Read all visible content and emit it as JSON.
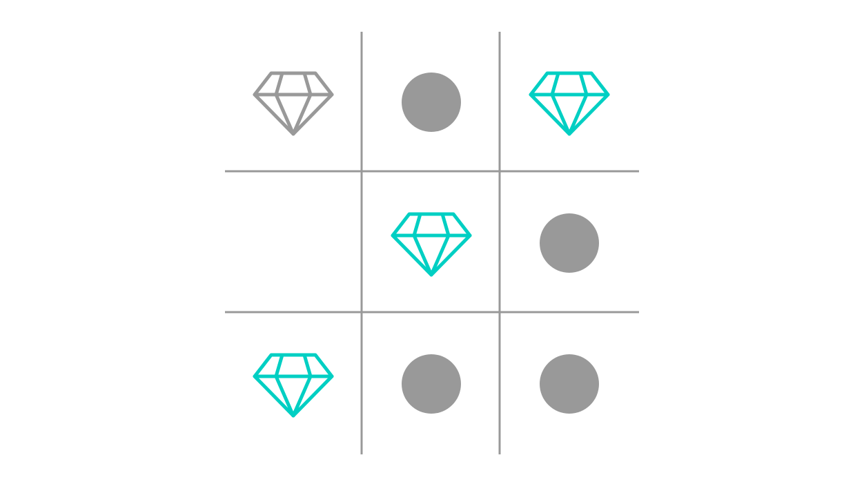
{
  "colors": {
    "background": "#ffffff",
    "grid_line": "#999999",
    "disc": "#999999",
    "gem_highlight": "#00cfc3",
    "gem_muted": "#999999"
  },
  "board": {
    "rows": 3,
    "cols": 3,
    "cells": [
      [
        {
          "piece": "diamond-icon",
          "color": "#999999"
        },
        {
          "piece": "circle",
          "color": "#999999"
        },
        {
          "piece": "diamond-icon",
          "color": "#00cfc3"
        }
      ],
      [
        {
          "piece": "empty",
          "color": ""
        },
        {
          "piece": "diamond-icon",
          "color": "#00cfc3"
        },
        {
          "piece": "circle",
          "color": "#999999"
        }
      ],
      [
        {
          "piece": "diamond-icon",
          "color": "#00cfc3"
        },
        {
          "piece": "circle",
          "color": "#999999"
        },
        {
          "piece": "circle",
          "color": "#999999"
        }
      ]
    ]
  }
}
